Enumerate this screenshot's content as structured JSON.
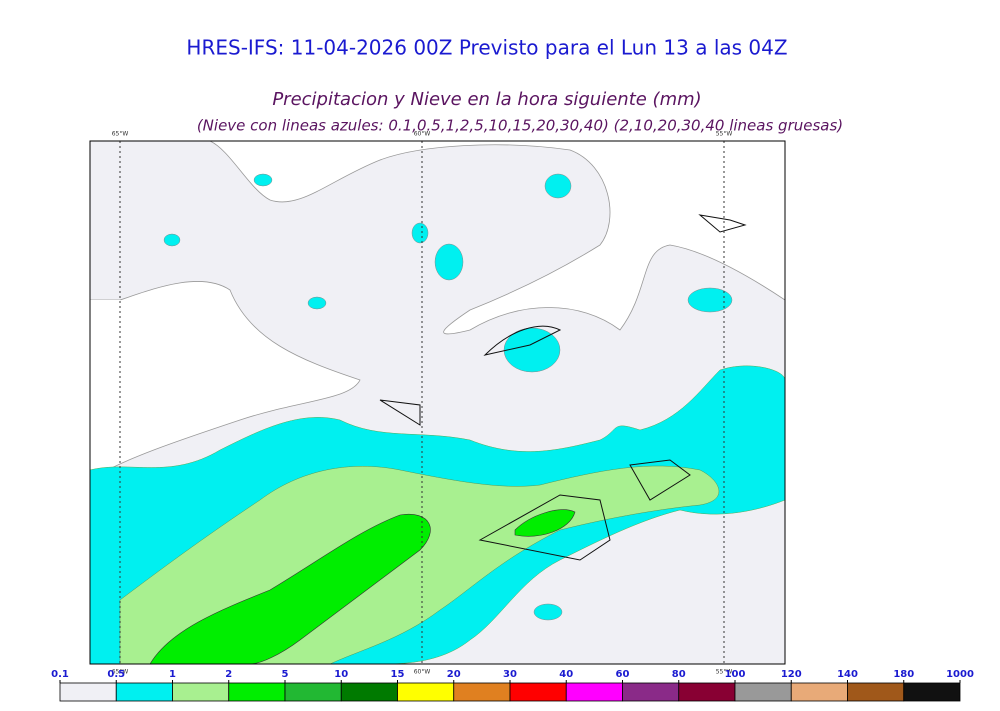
{
  "header": {
    "title": "HRES-IFS: 11-04-2026 00Z Previsto para el Lun 13 a las 04Z",
    "subtitle": "Precipitacion y Nieve en la hora siguiente (mm)",
    "note": "(Nieve con lineas azules: 0.1,0.5,1,2,5,10,15,20,30,40)  (2,10,20,30,40 lineas gruesas)"
  },
  "map": {
    "meridians": [
      "65°W",
      "60°W",
      "55°W"
    ]
  },
  "colorbar": {
    "ticks": [
      0.1,
      0.5,
      1,
      2,
      5,
      10,
      15,
      20,
      30,
      40,
      60,
      80,
      100,
      120,
      140,
      180,
      1000
    ],
    "colors": [
      "#f0f0f5",
      "#00f0f0",
      "#a8f090",
      "#00ee00",
      "#22b833",
      "#007a00",
      "#ffff00",
      "#e08020",
      "#ff0000",
      "#ff00ff",
      "#8a2a88",
      "#880033",
      "#999999",
      "#e8aa78",
      "#a0581a",
      "#111111"
    ]
  }
}
